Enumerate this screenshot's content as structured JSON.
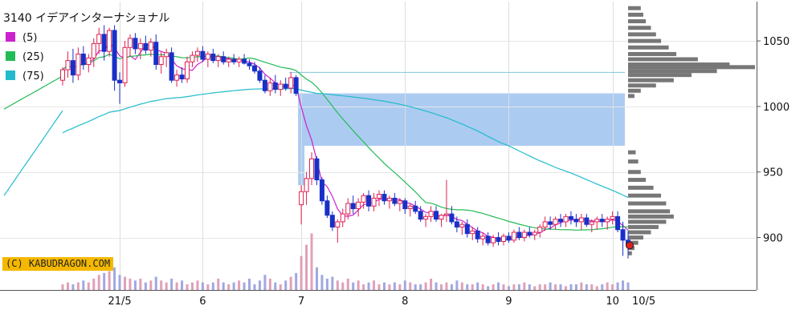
{
  "chart_data": {
    "type": "candlestick",
    "title": "3140 イデアインターナショナル",
    "legend": [
      {
        "label": "(5)",
        "color": "#cc22cc"
      },
      {
        "label": "(25)",
        "color": "#22bb55"
      },
      {
        "label": "(75)",
        "color": "#22bbcc"
      }
    ],
    "y_axis": {
      "position": "right",
      "min": 860,
      "max": 1080,
      "ticks": [
        900,
        950,
        1000,
        1050
      ]
    },
    "x_ticks": [
      "21/5",
      "6",
      "7",
      "8",
      "9",
      "10"
    ],
    "x_end_label": "10/5",
    "current_price": 894,
    "reference_line": 1026,
    "gap_zones": [
      {
        "from": 970,
        "to": 1010
      },
      {
        "from": 940,
        "to": 970
      }
    ],
    "candles": [
      {
        "o": 1020,
        "h": 1030,
        "l": 1016,
        "c": 1028
      },
      {
        "o": 1028,
        "h": 1042,
        "l": 1022,
        "c": 1035
      },
      {
        "o": 1035,
        "h": 1044,
        "l": 1018,
        "c": 1024
      },
      {
        "o": 1024,
        "h": 1045,
        "l": 1020,
        "c": 1040
      },
      {
        "o": 1040,
        "h": 1046,
        "l": 1028,
        "c": 1032
      },
      {
        "o": 1032,
        "h": 1040,
        "l": 1026,
        "c": 1037
      },
      {
        "o": 1037,
        "h": 1052,
        "l": 1030,
        "c": 1048
      },
      {
        "o": 1048,
        "h": 1060,
        "l": 1040,
        "c": 1055
      },
      {
        "o": 1055,
        "h": 1062,
        "l": 1035,
        "c": 1042
      },
      {
        "o": 1042,
        "h": 1060,
        "l": 1038,
        "c": 1058
      },
      {
        "o": 1058,
        "h": 1062,
        "l": 1012,
        "c": 1020
      },
      {
        "o": 1020,
        "h": 1026,
        "l": 1002,
        "c": 1018
      },
      {
        "o": 1018,
        "h": 1050,
        "l": 1015,
        "c": 1045
      },
      {
        "o": 1045,
        "h": 1055,
        "l": 1038,
        "c": 1052
      },
      {
        "o": 1052,
        "h": 1056,
        "l": 1040,
        "c": 1044
      },
      {
        "o": 1044,
        "h": 1052,
        "l": 1036,
        "c": 1048
      },
      {
        "o": 1048,
        "h": 1054,
        "l": 1040,
        "c": 1043
      },
      {
        "o": 1043,
        "h": 1052,
        "l": 1038,
        "c": 1049
      },
      {
        "o": 1049,
        "h": 1055,
        "l": 1028,
        "c": 1032
      },
      {
        "o": 1032,
        "h": 1042,
        "l": 1025,
        "c": 1038
      },
      {
        "o": 1038,
        "h": 1044,
        "l": 1030,
        "c": 1041
      },
      {
        "o": 1041,
        "h": 1045,
        "l": 1018,
        "c": 1020
      },
      {
        "o": 1020,
        "h": 1028,
        "l": 1015,
        "c": 1024
      },
      {
        "o": 1024,
        "h": 1030,
        "l": 1018,
        "c": 1021
      },
      {
        "o": 1021,
        "h": 1038,
        "l": 1018,
        "c": 1034
      },
      {
        "o": 1034,
        "h": 1042,
        "l": 1030,
        "c": 1039
      },
      {
        "o": 1039,
        "h": 1045,
        "l": 1034,
        "c": 1042
      },
      {
        "o": 1042,
        "h": 1046,
        "l": 1034,
        "c": 1036
      },
      {
        "o": 1036,
        "h": 1042,
        "l": 1030,
        "c": 1040
      },
      {
        "o": 1040,
        "h": 1044,
        "l": 1033,
        "c": 1035
      },
      {
        "o": 1035,
        "h": 1040,
        "l": 1030,
        "c": 1038
      },
      {
        "o": 1038,
        "h": 1042,
        "l": 1032,
        "c": 1034
      },
      {
        "o": 1034,
        "h": 1038,
        "l": 1030,
        "c": 1036
      },
      {
        "o": 1036,
        "h": 1040,
        "l": 1032,
        "c": 1034
      },
      {
        "o": 1034,
        "h": 1038,
        "l": 1030,
        "c": 1036
      },
      {
        "o": 1036,
        "h": 1040,
        "l": 1032,
        "c": 1033
      },
      {
        "o": 1033,
        "h": 1036,
        "l": 1028,
        "c": 1031
      },
      {
        "o": 1031,
        "h": 1034,
        "l": 1025,
        "c": 1027
      },
      {
        "o": 1027,
        "h": 1030,
        "l": 1018,
        "c": 1020
      },
      {
        "o": 1020,
        "h": 1024,
        "l": 1010,
        "c": 1012
      },
      {
        "o": 1012,
        "h": 1022,
        "l": 1008,
        "c": 1018
      },
      {
        "o": 1018,
        "h": 1024,
        "l": 1010,
        "c": 1013
      },
      {
        "o": 1013,
        "h": 1020,
        "l": 1008,
        "c": 1017
      },
      {
        "o": 1017,
        "h": 1022,
        "l": 1012,
        "c": 1014
      },
      {
        "o": 1014,
        "h": 1026,
        "l": 1010,
        "c": 1022
      },
      {
        "o": 1022,
        "h": 1024,
        "l": 1008,
        "c": 1010
      },
      {
        "o": 925,
        "h": 940,
        "l": 910,
        "c": 935
      },
      {
        "o": 935,
        "h": 950,
        "l": 925,
        "c": 945
      },
      {
        "o": 945,
        "h": 965,
        "l": 940,
        "c": 960
      },
      {
        "o": 960,
        "h": 962,
        "l": 940,
        "c": 944
      },
      {
        "o": 944,
        "h": 946,
        "l": 925,
        "c": 928
      },
      {
        "o": 928,
        "h": 932,
        "l": 915,
        "c": 917
      },
      {
        "o": 917,
        "h": 920,
        "l": 905,
        "c": 908
      },
      {
        "o": 908,
        "h": 914,
        "l": 896,
        "c": 912
      },
      {
        "o": 912,
        "h": 922,
        "l": 908,
        "c": 918
      },
      {
        "o": 918,
        "h": 930,
        "l": 914,
        "c": 926
      },
      {
        "o": 926,
        "h": 932,
        "l": 918,
        "c": 922
      },
      {
        "o": 922,
        "h": 930,
        "l": 916,
        "c": 927
      },
      {
        "o": 927,
        "h": 934,
        "l": 922,
        "c": 932
      },
      {
        "o": 932,
        "h": 936,
        "l": 920,
        "c": 924
      },
      {
        "o": 924,
        "h": 934,
        "l": 920,
        "c": 930
      },
      {
        "o": 930,
        "h": 936,
        "l": 924,
        "c": 933
      },
      {
        "o": 933,
        "h": 936,
        "l": 925,
        "c": 928
      },
      {
        "o": 928,
        "h": 932,
        "l": 922,
        "c": 930
      },
      {
        "o": 930,
        "h": 934,
        "l": 924,
        "c": 926
      },
      {
        "o": 926,
        "h": 930,
        "l": 920,
        "c": 928
      },
      {
        "o": 928,
        "h": 930,
        "l": 918,
        "c": 922
      },
      {
        "o": 922,
        "h": 926,
        "l": 916,
        "c": 924
      },
      {
        "o": 924,
        "h": 928,
        "l": 918,
        "c": 920
      },
      {
        "o": 920,
        "h": 924,
        "l": 912,
        "c": 914
      },
      {
        "o": 914,
        "h": 918,
        "l": 908,
        "c": 916
      },
      {
        "o": 916,
        "h": 924,
        "l": 912,
        "c": 920
      },
      {
        "o": 920,
        "h": 924,
        "l": 912,
        "c": 914
      },
      {
        "o": 914,
        "h": 918,
        "l": 908,
        "c": 917
      },
      {
        "o": 917,
        "h": 944,
        "l": 912,
        "c": 918
      },
      {
        "o": 918,
        "h": 924,
        "l": 910,
        "c": 912
      },
      {
        "o": 912,
        "h": 916,
        "l": 904,
        "c": 908
      },
      {
        "o": 908,
        "h": 912,
        "l": 902,
        "c": 910
      },
      {
        "o": 910,
        "h": 914,
        "l": 900,
        "c": 903
      },
      {
        "o": 903,
        "h": 908,
        "l": 898,
        "c": 905
      },
      {
        "o": 905,
        "h": 908,
        "l": 896,
        "c": 899
      },
      {
        "o": 899,
        "h": 904,
        "l": 894,
        "c": 901
      },
      {
        "o": 901,
        "h": 904,
        "l": 894,
        "c": 896
      },
      {
        "o": 896,
        "h": 902,
        "l": 893,
        "c": 900
      },
      {
        "o": 900,
        "h": 904,
        "l": 894,
        "c": 897
      },
      {
        "o": 897,
        "h": 903,
        "l": 894,
        "c": 901
      },
      {
        "o": 901,
        "h": 904,
        "l": 896,
        "c": 898
      },
      {
        "o": 898,
        "h": 906,
        "l": 896,
        "c": 904
      },
      {
        "o": 904,
        "h": 908,
        "l": 898,
        "c": 900
      },
      {
        "o": 900,
        "h": 906,
        "l": 897,
        "c": 904
      },
      {
        "o": 904,
        "h": 908,
        "l": 900,
        "c": 902
      },
      {
        "o": 902,
        "h": 906,
        "l": 898,
        "c": 904
      },
      {
        "o": 904,
        "h": 910,
        "l": 900,
        "c": 908
      },
      {
        "o": 908,
        "h": 916,
        "l": 905,
        "c": 912
      },
      {
        "o": 912,
        "h": 916,
        "l": 906,
        "c": 910
      },
      {
        "o": 910,
        "h": 916,
        "l": 906,
        "c": 914
      },
      {
        "o": 914,
        "h": 918,
        "l": 908,
        "c": 912
      },
      {
        "o": 912,
        "h": 918,
        "l": 908,
        "c": 916
      },
      {
        "o": 916,
        "h": 920,
        "l": 910,
        "c": 914
      },
      {
        "o": 914,
        "h": 918,
        "l": 908,
        "c": 912
      },
      {
        "o": 912,
        "h": 918,
        "l": 906,
        "c": 915
      },
      {
        "o": 915,
        "h": 918,
        "l": 908,
        "c": 910
      },
      {
        "o": 910,
        "h": 914,
        "l": 904,
        "c": 912
      },
      {
        "o": 912,
        "h": 916,
        "l": 906,
        "c": 914
      },
      {
        "o": 914,
        "h": 918,
        "l": 908,
        "c": 912
      },
      {
        "o": 912,
        "h": 916,
        "l": 906,
        "c": 914
      },
      {
        "o": 914,
        "h": 920,
        "l": 910,
        "c": 916
      },
      {
        "o": 916,
        "h": 920,
        "l": 904,
        "c": 906
      },
      {
        "o": 906,
        "h": 912,
        "l": 886,
        "c": 898
      },
      {
        "o": 898,
        "h": 905,
        "l": 884,
        "c": 894
      }
    ],
    "volume": [
      3,
      4,
      3,
      4,
      5,
      4,
      6,
      8,
      9,
      10,
      12,
      8,
      7,
      6,
      5,
      6,
      4,
      5,
      7,
      5,
      4,
      6,
      4,
      5,
      3,
      4,
      5,
      4,
      3,
      4,
      6,
      4,
      3,
      4,
      5,
      4,
      6,
      3,
      5,
      8,
      6,
      4,
      3,
      5,
      7,
      9,
      18,
      24,
      30,
      12,
      8,
      6,
      7,
      5,
      4,
      6,
      4,
      5,
      3,
      4,
      5,
      3,
      4,
      3,
      4,
      3,
      5,
      4,
      3,
      3,
      4,
      6,
      4,
      3,
      4,
      3,
      5,
      4,
      3,
      3,
      4,
      3,
      2,
      3,
      4,
      3,
      2,
      3,
      3,
      4,
      3,
      2,
      3,
      3,
      4,
      3,
      3,
      2,
      3,
      3,
      4,
      3,
      3,
      2,
      3,
      4,
      3,
      4,
      5,
      4
    ],
    "price_profile": [
      {
        "price": 1075,
        "v": 0.1
      },
      {
        "price": 1070,
        "v": 0.12
      },
      {
        "price": 1065,
        "v": 0.14
      },
      {
        "price": 1060,
        "v": 0.18
      },
      {
        "price": 1055,
        "v": 0.22
      },
      {
        "price": 1050,
        "v": 0.26
      },
      {
        "price": 1045,
        "v": 0.32
      },
      {
        "price": 1040,
        "v": 0.38
      },
      {
        "price": 1036,
        "v": 0.55
      },
      {
        "price": 1032,
        "v": 0.8
      },
      {
        "price": 1030,
        "v": 1.0
      },
      {
        "price": 1027,
        "v": 0.7
      },
      {
        "price": 1024,
        "v": 0.5
      },
      {
        "price": 1020,
        "v": 0.36
      },
      {
        "price": 1016,
        "v": 0.22
      },
      {
        "price": 1012,
        "v": 0.1
      },
      {
        "price": 1008,
        "v": 0.05
      },
      {
        "price": 965,
        "v": 0.06
      },
      {
        "price": 958,
        "v": 0.08
      },
      {
        "price": 950,
        "v": 0.1
      },
      {
        "price": 944,
        "v": 0.14
      },
      {
        "price": 938,
        "v": 0.2
      },
      {
        "price": 932,
        "v": 0.26
      },
      {
        "price": 926,
        "v": 0.3
      },
      {
        "price": 920,
        "v": 0.33
      },
      {
        "price": 916,
        "v": 0.36
      },
      {
        "price": 912,
        "v": 0.3
      },
      {
        "price": 908,
        "v": 0.24
      },
      {
        "price": 904,
        "v": 0.18
      },
      {
        "price": 900,
        "v": 0.12
      },
      {
        "price": 896,
        "v": 0.08
      },
      {
        "price": 892,
        "v": 0.05
      },
      {
        "price": 888,
        "v": 0.03
      }
    ],
    "grid": true
  }
}
